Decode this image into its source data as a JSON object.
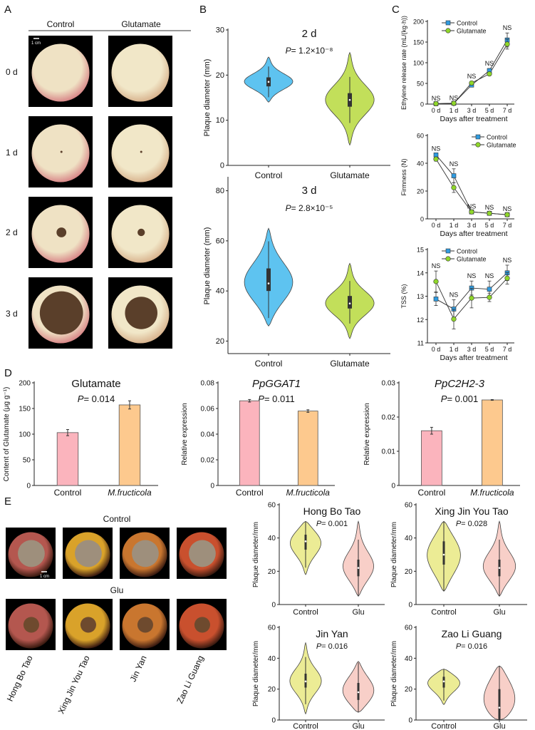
{
  "panels": {
    "A": "A",
    "B": "B",
    "C": "C",
    "D": "D",
    "E": "E"
  },
  "panelA": {
    "col_headers": [
      "Control",
      "Glutamate"
    ],
    "row_labels": [
      "0 d",
      "1 d",
      "2 d",
      "3 d"
    ],
    "scale_bar": "1 cm",
    "lesion_stage": [
      0,
      0.02,
      0.17,
      0.75
    ],
    "colors": {
      "fruit": "#efe2c4",
      "blush": "#d98a8a",
      "lesion": "#5a3f2a"
    }
  },
  "panelE": {
    "row_headers": [
      "Control",
      "Glu"
    ],
    "varieties": [
      "Hong Bo Tao",
      "Xing Jin You Tao",
      "Jin Yan",
      "Zao Li Guang"
    ],
    "scale_bar": "1 cm",
    "fruit_colors": [
      "#b4574f",
      "#d9a22a",
      "#c9762f",
      "#c9502e"
    ],
    "lesion_color": "#9e8f7c"
  },
  "chart_data": [
    {
      "id": "B-2d",
      "type": "violin",
      "title": "2 d",
      "p": "P = 1.2×10⁻⁸",
      "ylabel": "Plaque diameter (mm)",
      "xlabel": "",
      "ylim": [
        0,
        30
      ],
      "yticks": [
        0,
        10,
        20,
        30
      ],
      "categories": [
        "Control",
        "Glutamate"
      ],
      "colors": [
        "#5ec3f0",
        "#c2df5a"
      ],
      "series": [
        {
          "min": 14,
          "q1": 17.5,
          "median": 18.5,
          "q3": 19.5,
          "max": 24
        },
        {
          "min": 4.5,
          "q1": 13,
          "median": 14.5,
          "q3": 16,
          "max": 25
        }
      ]
    },
    {
      "id": "B-3d",
      "type": "violin",
      "title": "3 d",
      "p": "P = 2.8×10⁻⁵",
      "ylabel": "Plaque diameter (mm)",
      "xlabel": "",
      "ylim": [
        15,
        85
      ],
      "yticks": [
        20,
        40,
        60,
        80
      ],
      "categories": [
        "Control",
        "Glutamate"
      ],
      "colors": [
        "#5ec3f0",
        "#c2df5a"
      ],
      "series": [
        {
          "min": 26,
          "q1": 40,
          "median": 43,
          "q3": 49,
          "max": 65
        },
        {
          "min": 21,
          "q1": 33,
          "median": 35,
          "q3": 38,
          "max": 51
        }
      ]
    },
    {
      "id": "C-ethylene",
      "type": "line",
      "ylabel": "Ethylene release rate (mL/(kg·h))",
      "xlabel": "Days after treatment",
      "categories": [
        "0 d",
        "1 d",
        "3 d",
        "5 d",
        "7 d"
      ],
      "ylim": [
        0,
        200
      ],
      "yticks": [
        0,
        50,
        100,
        150,
        200
      ],
      "legend": "top-left",
      "annotations": [
        "NS",
        "NS",
        "NS",
        "NS",
        "NS"
      ],
      "series": [
        {
          "name": "Control",
          "color": "#2f9be0",
          "marker": "square",
          "values": [
            1,
            2,
            46,
            81,
            155
          ],
          "errors": [
            1,
            1,
            4,
            5,
            17
          ]
        },
        {
          "name": "Glutamate",
          "color": "#8fd62a",
          "marker": "circle",
          "values": [
            1,
            2,
            51,
            73,
            145
          ],
          "errors": [
            1,
            1,
            4,
            4,
            12
          ]
        }
      ]
    },
    {
      "id": "C-firmness",
      "type": "line",
      "ylabel": "Firmness (N)",
      "xlabel": "Days after treatment",
      "categories": [
        "0 d",
        "1 d",
        "3 d",
        "5 d",
        "7 d"
      ],
      "ylim": [
        0,
        60
      ],
      "yticks": [
        0,
        20,
        40,
        60
      ],
      "legend": "top-right",
      "annotations": [
        "NS",
        "NS",
        "NS",
        "NS",
        "NS"
      ],
      "series": [
        {
          "name": "Control",
          "color": "#2f9be0",
          "marker": "square",
          "values": [
            46,
            31,
            5,
            4,
            3
          ],
          "errors": [
            1,
            5,
            0.5,
            0.5,
            0.5
          ]
        },
        {
          "name": "Glutamate",
          "color": "#8fd62a",
          "marker": "circle",
          "values": [
            43,
            22.5,
            5,
            4,
            3
          ],
          "errors": [
            1.5,
            3.5,
            0.5,
            0.5,
            0.5
          ]
        }
      ]
    },
    {
      "id": "C-tss",
      "type": "line",
      "ylabel": "TSS (%)",
      "xlabel": "Days after treatment",
      "categories": [
        "0 d",
        "1 d",
        "3 d",
        "5 d",
        "7 d"
      ],
      "ylim": [
        11,
        15
      ],
      "yticks": [
        11,
        12,
        13,
        14,
        15
      ],
      "legend": "top-left",
      "annotations": [
        "NS",
        "NS",
        "NS",
        "NS",
        "NS"
      ],
      "series": [
        {
          "name": "Control",
          "color": "#2f9be0",
          "marker": "square",
          "values": [
            12.88,
            12.45,
            13.35,
            13.3,
            14.0
          ],
          "errors": [
            0.28,
            0.4,
            0.3,
            0.35,
            0.33
          ]
        },
        {
          "name": "Glutamate",
          "color": "#8fd62a",
          "marker": "circle",
          "values": [
            13.63,
            12.02,
            12.92,
            12.95,
            13.77
          ],
          "errors": [
            0.45,
            0.42,
            0.42,
            0.18,
            0.25
          ]
        }
      ]
    },
    {
      "id": "D-glutamate",
      "type": "bar",
      "title": "Glutamate",
      "title_italic": false,
      "p": "P = 0.014",
      "ylabel": "Content of Glutamate (μg g⁻¹)",
      "ylim": [
        0,
        200
      ],
      "yticks": [
        "0",
        "50",
        "100",
        "150",
        "200"
      ],
      "categories": [
        "Control",
        "M.fructicola"
      ],
      "colors": [
        "#fbb4bd",
        "#fdc98e"
      ],
      "values": [
        103,
        157
      ],
      "errors": [
        6,
        8
      ]
    },
    {
      "id": "D-ppggat1",
      "type": "bar",
      "title": "PpGGAT1",
      "title_italic": true,
      "p": "P = 0.011",
      "ylabel": "Relative expression",
      "ylim": [
        0,
        0.08
      ],
      "yticks": [
        "0",
        "0.02",
        "0.04",
        "0.06",
        "0.08"
      ],
      "categories": [
        "Control",
        "M.fructicola"
      ],
      "colors": [
        "#fbb4bd",
        "#fdc98e"
      ],
      "values": [
        0.066,
        0.058
      ],
      "errors": [
        0.001,
        0.001
      ]
    },
    {
      "id": "D-ppc2h2-3",
      "type": "bar",
      "title": "PpC2H2-3",
      "title_italic": true,
      "p": "P = 0.001",
      "ylabel": "Relative expression",
      "ylim": [
        0,
        0.03
      ],
      "yticks": [
        "0",
        "0.01",
        "0.02",
        "0.03"
      ],
      "categories": [
        "Control",
        "M.fructicola"
      ],
      "colors": [
        "#fbb4bd",
        "#fdc98e"
      ],
      "values": [
        0.016,
        0.025
      ],
      "errors": [
        0.001,
        0.0001
      ]
    },
    {
      "id": "E-hbt",
      "type": "violin",
      "title": "Hong Bo Tao",
      "p": "P = 0.001",
      "ylabel": "Plaque diameter/mm",
      "ylim": [
        0,
        60
      ],
      "yticks": [
        0,
        20,
        40,
        60
      ],
      "categories": [
        "Control",
        "Glu"
      ],
      "colors": [
        "#ecec95",
        "#f8cfc8"
      ],
      "series": [
        {
          "min": 18,
          "q1": 33,
          "median": 38,
          "q3": 42,
          "max": 50
        },
        {
          "min": 5,
          "q1": 17,
          "median": 22,
          "q3": 27,
          "max": 50
        }
      ]
    },
    {
      "id": "E-xjyt",
      "type": "violin",
      "title": "Xing Jin You Tao",
      "p": "P = 0.028",
      "ylabel": "Plaque diameter/mm",
      "ylim": [
        0,
        60
      ],
      "yticks": [
        0,
        20,
        40,
        60
      ],
      "categories": [
        "Control",
        "Glu"
      ],
      "colors": [
        "#ecec95",
        "#f8cfc8"
      ],
      "series": [
        {
          "min": 8,
          "q1": 24,
          "median": 30,
          "q3": 38,
          "max": 50
        },
        {
          "min": 5,
          "q1": 17,
          "median": 22,
          "q3": 27,
          "max": 50
        }
      ]
    },
    {
      "id": "E-jy",
      "type": "violin",
      "title": "Jin Yan",
      "p": "P = 0.016",
      "ylabel": "Plaque diameter/mm",
      "ylim": [
        0,
        60
      ],
      "yticks": [
        0,
        20,
        40,
        60
      ],
      "categories": [
        "Control",
        "Glu"
      ],
      "colors": [
        "#ecec95",
        "#f8cfc8"
      ],
      "series": [
        {
          "min": 4,
          "q1": 21,
          "median": 25,
          "q3": 30,
          "max": 50
        },
        {
          "min": 5,
          "q1": 13,
          "median": 18,
          "q3": 24,
          "max": 38
        }
      ]
    },
    {
      "id": "E-zlg",
      "type": "violin",
      "title": "Zao Li Guang",
      "p": "P = 0.016",
      "ylabel": "Plaque diameter/mm",
      "ylim": [
        0,
        60
      ],
      "yticks": [
        0,
        20,
        40,
        60
      ],
      "categories": [
        "Control",
        "Glu"
      ],
      "colors": [
        "#ecec95",
        "#f8cfc8"
      ],
      "series": [
        {
          "min": 10,
          "q1": 21,
          "median": 25,
          "q3": 28,
          "max": 33
        },
        {
          "min": 0,
          "q1": 0,
          "median": 8,
          "q3": 20,
          "max": 35
        }
      ]
    }
  ]
}
